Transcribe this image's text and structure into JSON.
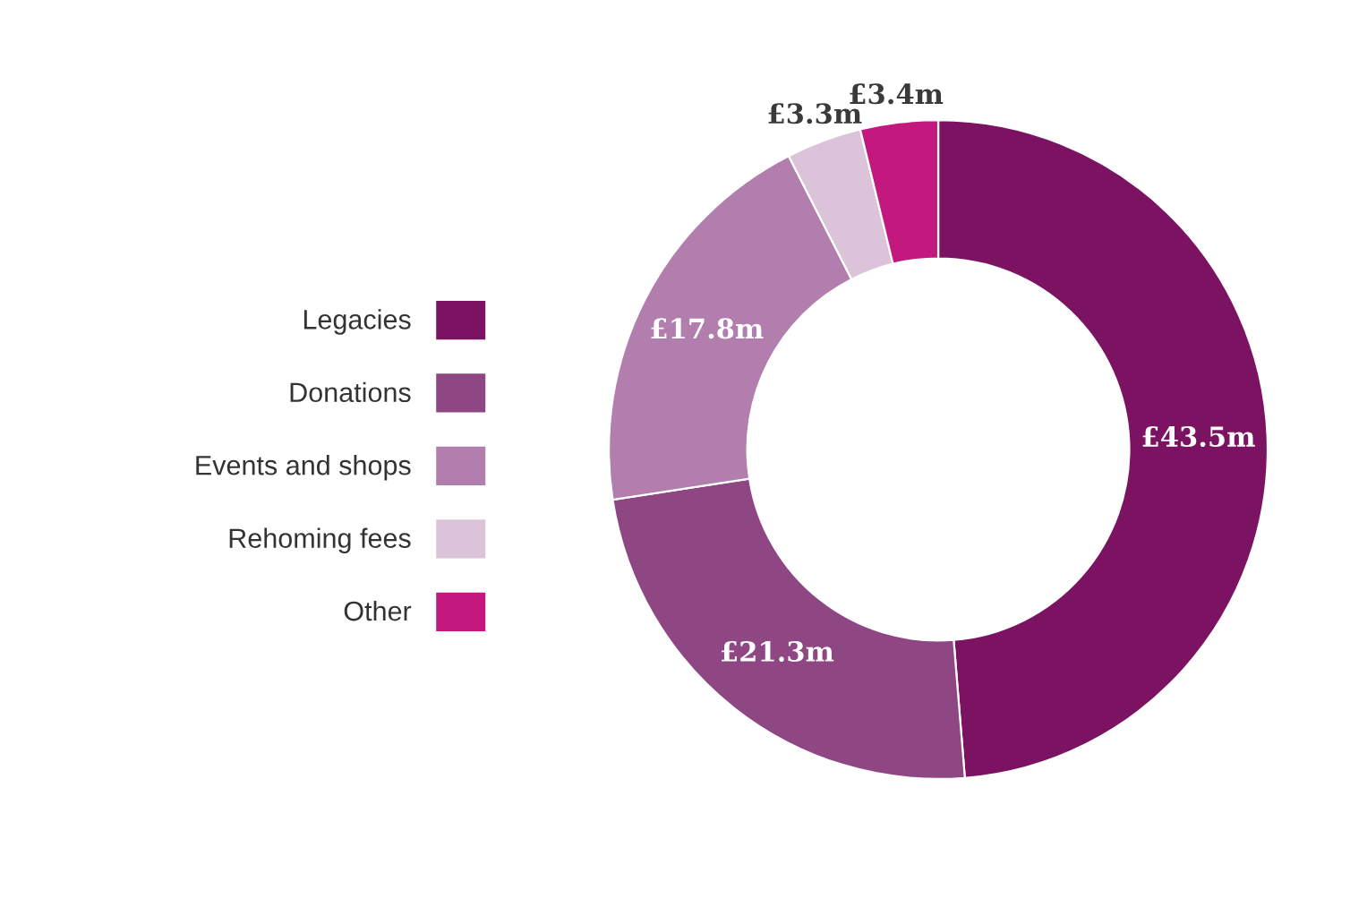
{
  "chart_data": {
    "type": "donut",
    "categories": [
      "Legacies",
      "Donations",
      "Events and shops",
      "Rehoming fees",
      "Other"
    ],
    "values": [
      43.5,
      21.3,
      17.8,
      3.3,
      3.4
    ],
    "colors": [
      "#7b1262",
      "#8f4783",
      "#b17eae",
      "#dbc3da",
      "#c3197f"
    ],
    "value_labels": [
      "£43.5m",
      "£21.3m",
      "£17.8m",
      "£3.3m",
      "£3.4m"
    ],
    "legend": "left"
  }
}
